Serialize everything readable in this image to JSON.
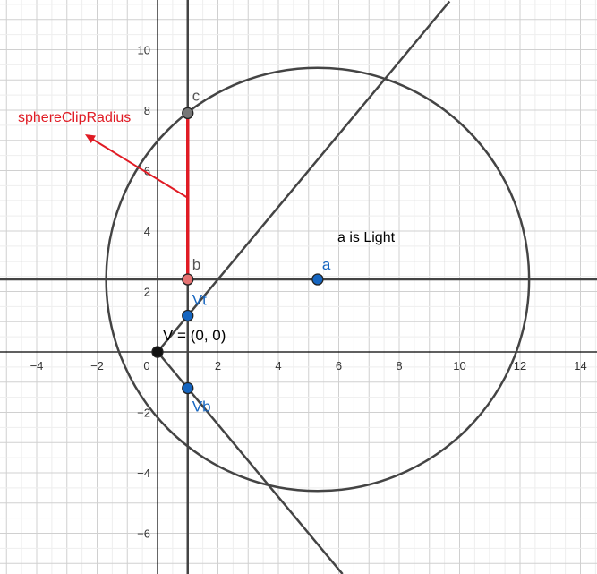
{
  "x_ticks": [
    "−4",
    "−2",
    "0",
    "2",
    "4",
    "6",
    "8",
    "10",
    "12",
    "14"
  ],
  "y_ticks": [
    "10",
    "8",
    "6",
    "4",
    "2",
    "−2",
    "−4",
    "−6"
  ],
  "points": {
    "c": {
      "label": "c",
      "x": 1,
      "y": 7.9,
      "color": "#555555"
    },
    "b": {
      "label": "b",
      "x": 1,
      "y": 2.4,
      "color": "#555555"
    },
    "a": {
      "label": "a",
      "x": 5.3,
      "y": 2.4,
      "color": "#1565c0"
    },
    "vt": {
      "label": "Vt",
      "x": 1,
      "y": 1.2,
      "color": "#1565c0"
    },
    "vb": {
      "label": "Vb",
      "x": 1,
      "y": -1.2,
      "color": "#1565c0"
    },
    "v": {
      "label": "V = (0, 0)",
      "x": 0,
      "y": 0,
      "color": "#000000"
    }
  },
  "circle": {
    "cx": 5.3,
    "cy": 2.4,
    "r": 7.0
  },
  "note_text": "a is Light",
  "annotation_text": "sphereClipRadius",
  "colors": {
    "grid_minor": "#eeeeee",
    "grid_major": "#d0d0d0",
    "axis": "#000000",
    "line": "#444444",
    "accent": "#e01b24",
    "point_blue": "#1565c0"
  }
}
